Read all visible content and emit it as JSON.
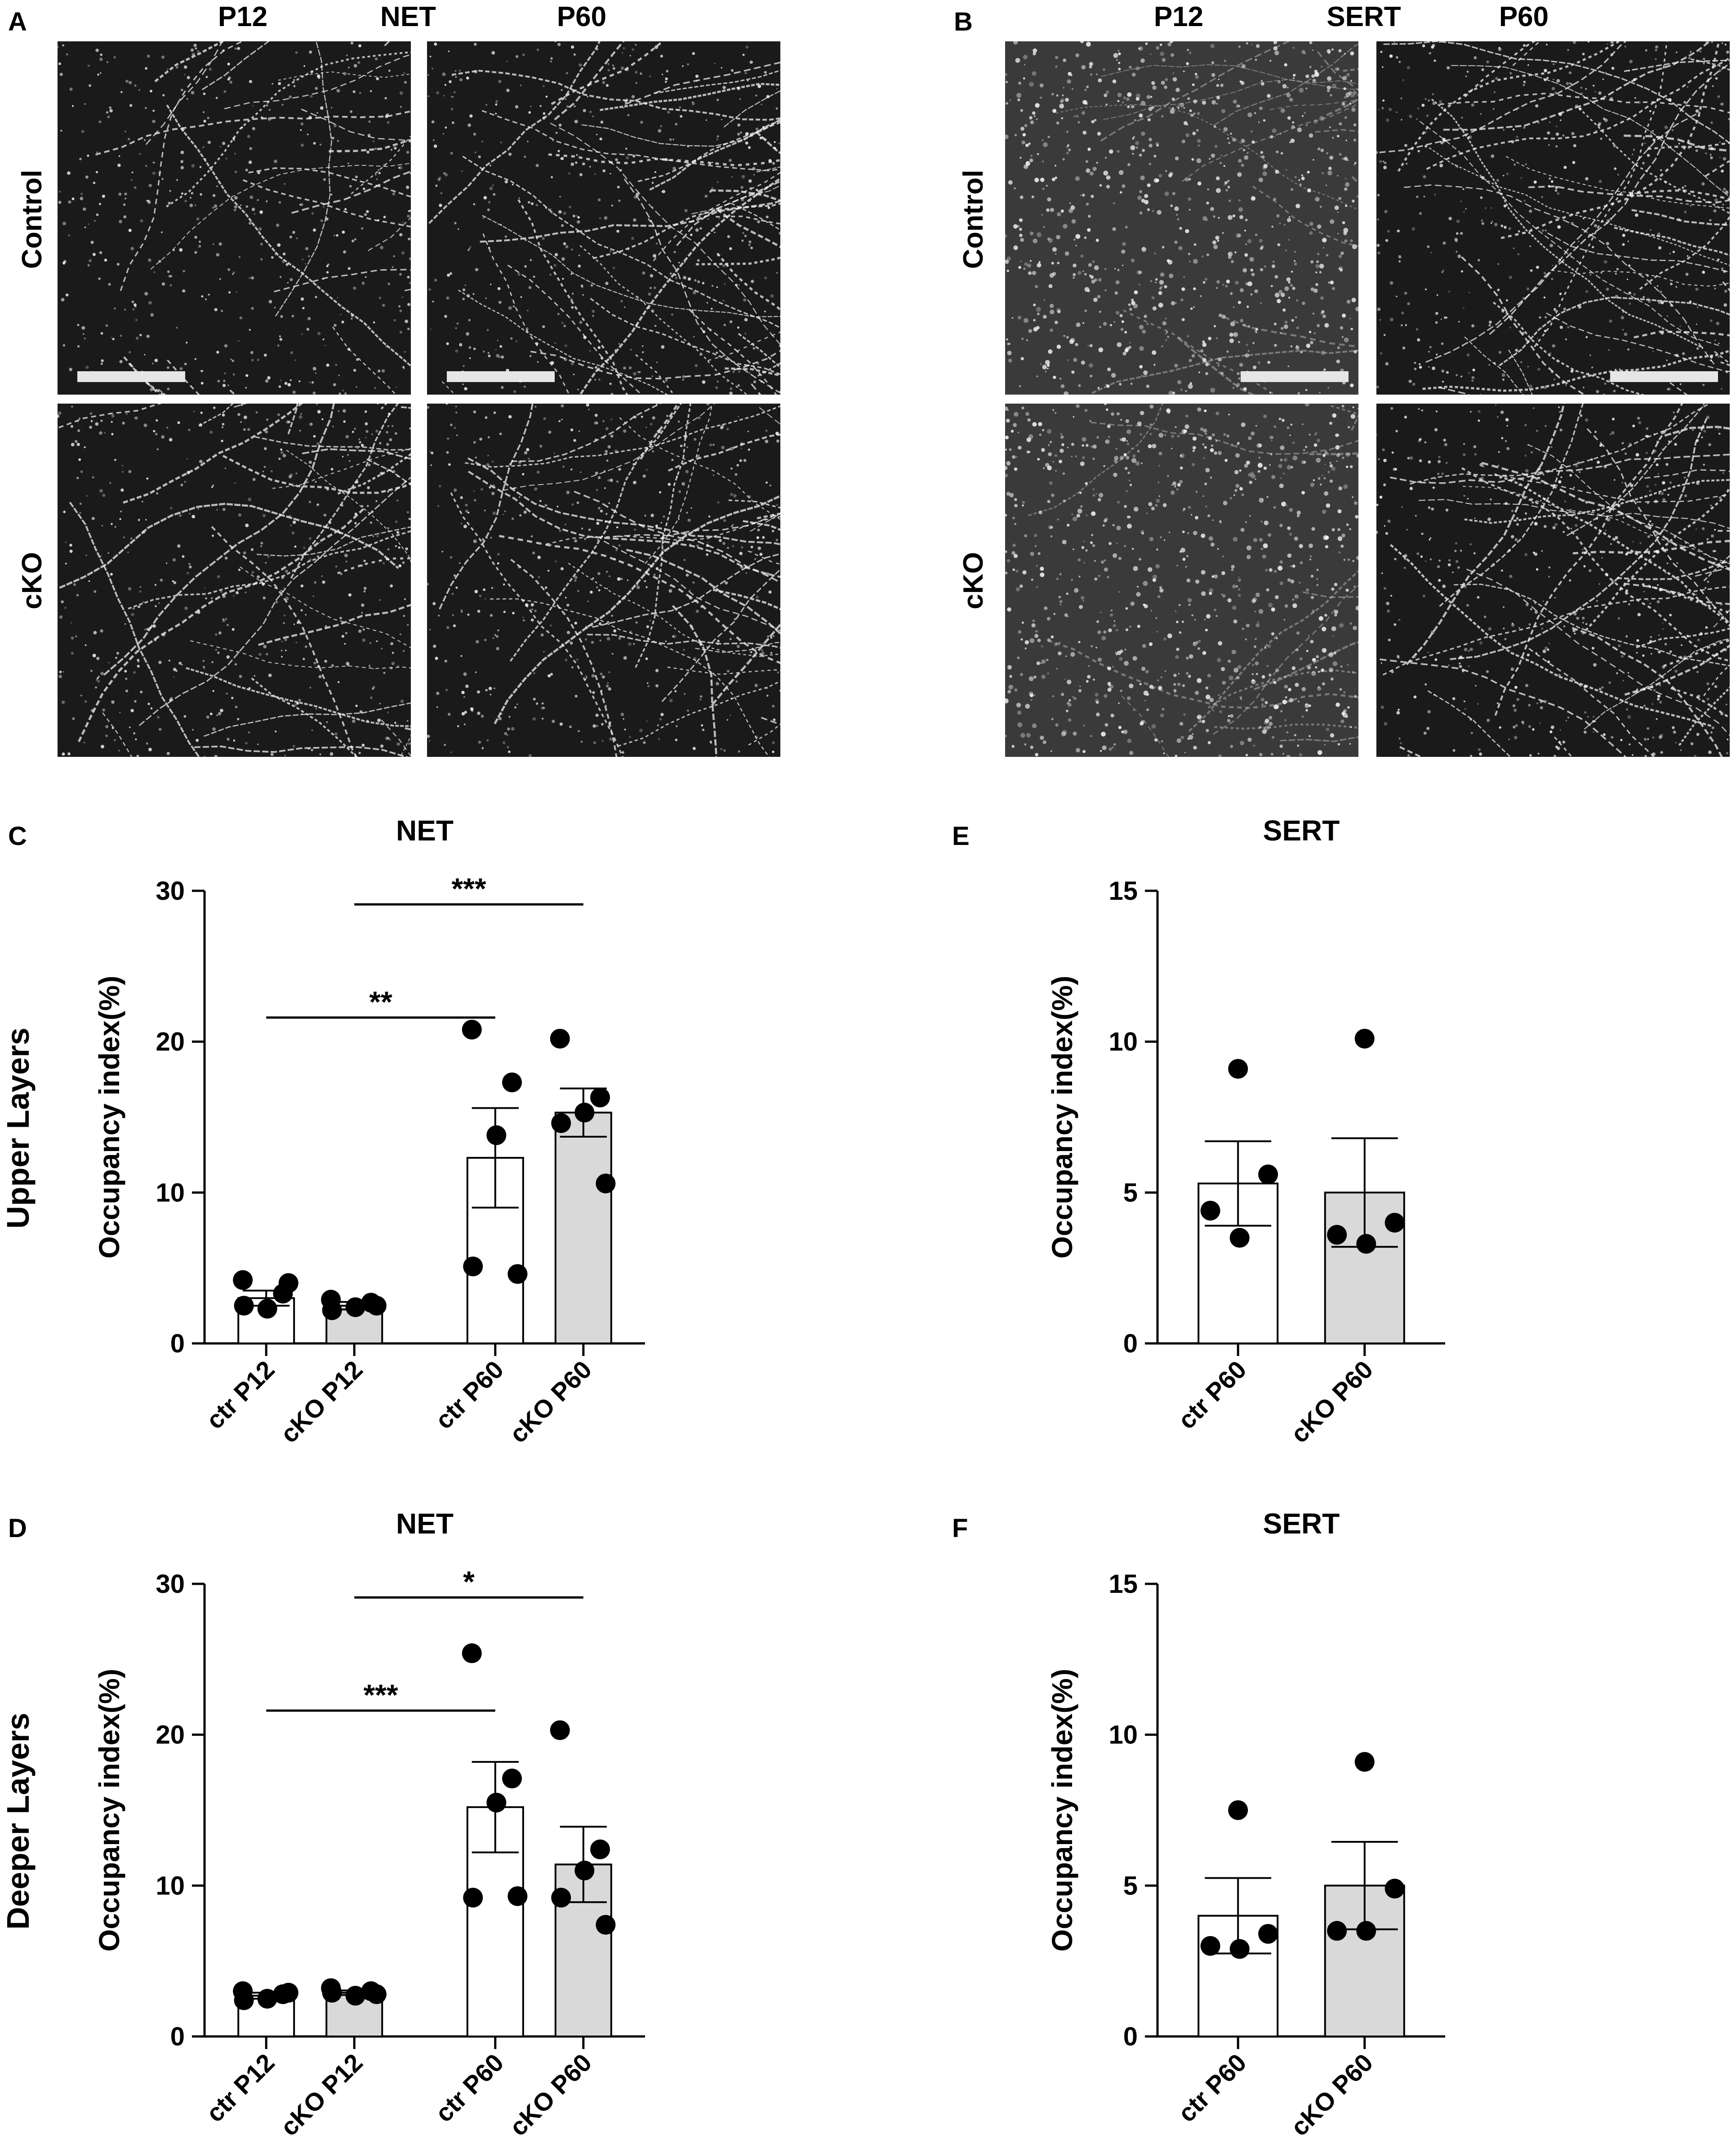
{
  "panels": {
    "A": {
      "letter": "A",
      "col_left": "P12",
      "col_mid": "NET",
      "col_right": "P60",
      "row_top": "Control",
      "row_bottom": "cKO"
    },
    "B": {
      "letter": "B",
      "col_left": "P12",
      "col_mid": "SERT",
      "col_right": "P60",
      "row_top": "Control",
      "row_bottom": "cKO"
    }
  },
  "row_labels": {
    "upper": "Upper Layers",
    "deeper": "Deeper Layers"
  },
  "colors": {
    "ctr_bar": "#ffffff",
    "cko_bar": "#d9d9d9",
    "micrograph_bg": "#1a1a1a",
    "fiber": "#f2f2f2"
  },
  "chart_data": [
    {
      "letter": "C",
      "type": "bar",
      "title": "NET",
      "ylabel": "Occupancy index(%)",
      "ylim": [
        0,
        30
      ],
      "yticks": [
        "0",
        "10",
        "20",
        "30"
      ],
      "categories": [
        "ctr P12",
        "cKO P12",
        "ctr P60",
        "cKO P60"
      ],
      "values": [
        3.0,
        2.5,
        12.3,
        15.3
      ],
      "sem": [
        0.5,
        0.25,
        3.3,
        1.6
      ],
      "points": [
        [
          4.2,
          3.3,
          2.3,
          2.5,
          4.0
        ],
        [
          2.9,
          2.7,
          2.4,
          2.2,
          2.5
        ],
        [
          20.8,
          17.3,
          13.8,
          5.1,
          4.6
        ],
        [
          20.2,
          16.3,
          15.3,
          14.6,
          10.6
        ]
      ],
      "significance": [
        {
          "from": 0,
          "to": 2,
          "label": "**"
        },
        {
          "from": 1,
          "to": 3,
          "label": "***"
        }
      ]
    },
    {
      "letter": "D",
      "type": "bar",
      "title": "NET",
      "ylabel": "Occupancy index(%)",
      "ylim": [
        0,
        30
      ],
      "yticks": [
        "0",
        "10",
        "20",
        "30"
      ],
      "categories": [
        "ctr P12",
        "cKO P12",
        "ctr P60",
        "cKO P60"
      ],
      "values": [
        2.7,
        2.9,
        15.2,
        11.4
      ],
      "sem": [
        0.2,
        0.15,
        3.0,
        2.5
      ],
      "points": [
        [
          3.0,
          2.8,
          2.5,
          2.4,
          2.9
        ],
        [
          3.2,
          3.0,
          2.7,
          2.9,
          2.8
        ],
        [
          25.4,
          17.1,
          15.5,
          9.2,
          9.3
        ],
        [
          20.3,
          12.4,
          11.0,
          9.2,
          7.4
        ]
      ],
      "significance": [
        {
          "from": 0,
          "to": 2,
          "label": "***"
        },
        {
          "from": 1,
          "to": 3,
          "label": "*"
        }
      ]
    },
    {
      "letter": "E",
      "type": "bar",
      "title": "SERT",
      "ylabel": "Occupancy index(%)",
      "ylim": [
        0,
        15
      ],
      "yticks": [
        "0",
        "5",
        "10",
        "15"
      ],
      "categories": [
        "ctr P60",
        "cKO P60"
      ],
      "values": [
        5.3,
        5.0
      ],
      "sem": [
        1.4,
        1.8
      ],
      "points": [
        [
          9.1,
          5.6,
          4.4,
          3.5
        ],
        [
          10.1,
          4.0,
          3.6,
          3.3
        ]
      ],
      "significance": []
    },
    {
      "letter": "F",
      "type": "bar",
      "title": "SERT",
      "ylabel": "Occupancy index(%)",
      "ylim": [
        0,
        15
      ],
      "yticks": [
        "0",
        "5",
        "10",
        "15"
      ],
      "categories": [
        "ctr P60",
        "cKO P60"
      ],
      "values": [
        4.0,
        5.0
      ],
      "sem": [
        1.25,
        1.45
      ],
      "points": [
        [
          7.5,
          3.4,
          3.0,
          2.9
        ],
        [
          9.1,
          4.9,
          3.5,
          3.5
        ]
      ],
      "significance": []
    }
  ]
}
